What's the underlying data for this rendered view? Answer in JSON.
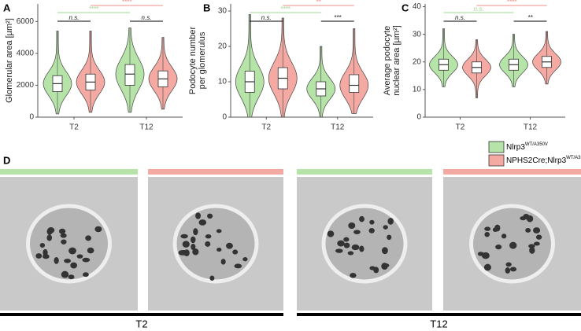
{
  "chart_data": [
    {
      "type": "violin",
      "label": "A",
      "ylabel": [
        "Glomerular area [µm²]"
      ],
      "categories": [
        "T2",
        "T12"
      ],
      "ylim": [
        0,
        7100
      ],
      "yticks": [
        0,
        2000,
        4000,
        6000
      ],
      "series": [
        {
          "name": "Nlrp3",
          "color": "#b6e3a8",
          "stats": [
            {
              "min": 200,
              "q1": 1600,
              "median": 2100,
              "q3": 2600,
              "max": 5400
            },
            {
              "min": 300,
              "q1": 2000,
              "median": 2700,
              "q3": 3300,
              "max": 5600
            }
          ]
        },
        {
          "name": "NPHS2Cre;Nlrp3",
          "color": "#f5a9a3",
          "stats": [
            {
              "min": 300,
              "q1": 1700,
              "median": 2200,
              "q3": 2700,
              "max": 5400
            },
            {
              "min": 500,
              "q1": 1900,
              "median": 2400,
              "q3": 2900,
              "max": 5000
            }
          ]
        }
      ],
      "significance": {
        "T2": "n.s.",
        "T12": "n.s.",
        "series0": "****",
        "series1": "****"
      }
    },
    {
      "type": "violin",
      "label": "B",
      "ylabel": [
        "Podocyte number",
        "per glomerulus"
      ],
      "categories": [
        "T2",
        "T12"
      ],
      "ylim": [
        0,
        32
      ],
      "yticks": [
        0,
        10,
        20,
        30
      ],
      "series": [
        {
          "name": "Nlrp3",
          "color": "#b6e3a8",
          "stats": [
            {
              "min": 0,
              "q1": 7,
              "median": 10,
              "q3": 13,
              "max": 29
            },
            {
              "min": 0,
              "q1": 6,
              "median": 8,
              "q3": 10,
              "max": 20
            }
          ]
        },
        {
          "name": "NPHS2Cre;Nlrp3",
          "color": "#f5a9a3",
          "stats": [
            {
              "min": 0,
              "q1": 8,
              "median": 11,
              "q3": 14,
              "max": 28
            },
            {
              "min": 1,
              "q1": 7,
              "median": 9,
              "q3": 12,
              "max": 25
            }
          ]
        }
      ],
      "significance": {
        "T2": "n.s.",
        "T12": "***",
        "series0": "****",
        "series1": "**"
      }
    },
    {
      "type": "violin",
      "label": "C",
      "ylabel": [
        "Average podocyte",
        "nuclear area [µm²]"
      ],
      "categories": [
        "T2",
        "T12"
      ],
      "ylim": [
        0,
        41
      ],
      "yticks": [
        0,
        10,
        20,
        30,
        40
      ],
      "series": [
        {
          "name": "Nlrp3",
          "color": "#b6e3a8",
          "stats": [
            {
              "min": 11,
              "q1": 17,
              "median": 19,
              "q3": 21,
              "max": 32
            },
            {
              "min": 11,
              "q1": 17,
              "median": 19,
              "q3": 21,
              "max": 30
            }
          ]
        },
        {
          "name": "NPHS2Cre;Nlrp3",
          "color": "#f5a9a3",
          "stats": [
            {
              "min": 7,
              "q1": 16,
              "median": 18,
              "q3": 20,
              "max": 28
            },
            {
              "min": 12,
              "q1": 18,
              "median": 20,
              "q3": 22,
              "max": 31
            }
          ]
        }
      ],
      "significance": {
        "T2": "n.s.",
        "T12": "**",
        "series0": "n.s.",
        "series1": "****"
      }
    }
  ],
  "legend": [
    {
      "name": "Nlrp3",
      "sup": "WT/A350V",
      "color": "#b6e3a8"
    },
    {
      "name": "NPHS2Cre;Nlrp3",
      "sup": "WT/A350V",
      "color": "#f5a9a3"
    }
  ],
  "panel_d": {
    "label": "D",
    "groups": [
      "T2",
      "T12"
    ]
  }
}
